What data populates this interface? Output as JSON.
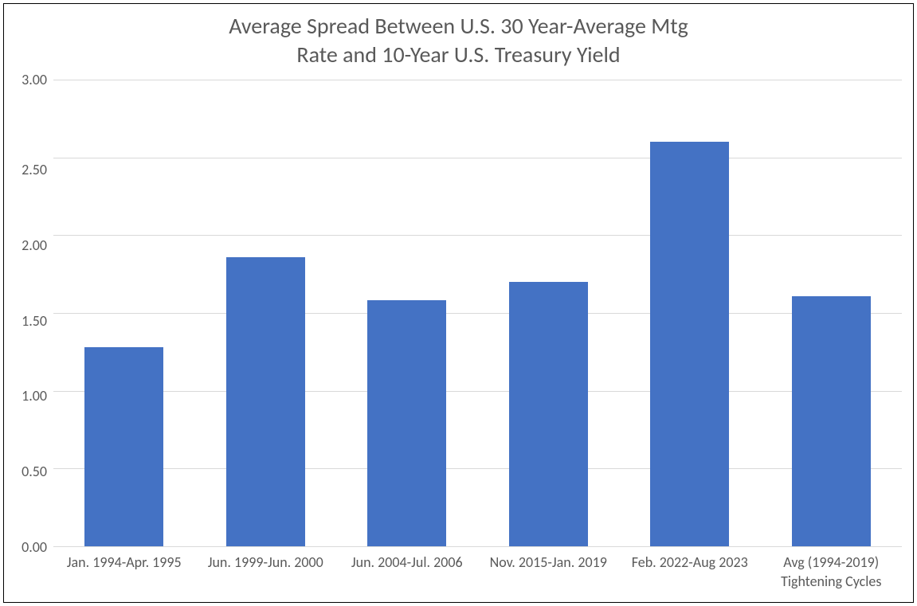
{
  "chart": {
    "type": "bar",
    "title_line1": "Average Spread Between U.S. 30 Year-Average Mtg",
    "title_line2": "Rate and 10-Year U.S. Treasury Yield",
    "title_color": "#595959",
    "title_fontsize": 28,
    "background_color": "#ffffff",
    "border_color": "#000000",
    "grid_color": "#d9d9d9",
    "axis_label_color": "#595959",
    "axis_label_fontsize": 18,
    "bar_color": "#4472c4",
    "bar_width_ratio": 0.56,
    "ylim": [
      0,
      3.0
    ],
    "ytick_step": 0.5,
    "yticks": [
      "3.00",
      "2.50",
      "2.00",
      "1.50",
      "1.00",
      "0.50",
      "0.00"
    ],
    "categories": [
      "Jan. 1994-Apr. 1995",
      "Jun. 1999-Jun. 2000",
      "Jun. 2004-Jul. 2006",
      "Nov. 2015-Jan. 2019",
      "Feb. 2022-Aug 2023",
      "Avg (1994-2019) Tightening Cycles"
    ],
    "values": [
      1.28,
      1.86,
      1.58,
      1.7,
      2.6,
      1.61
    ]
  }
}
